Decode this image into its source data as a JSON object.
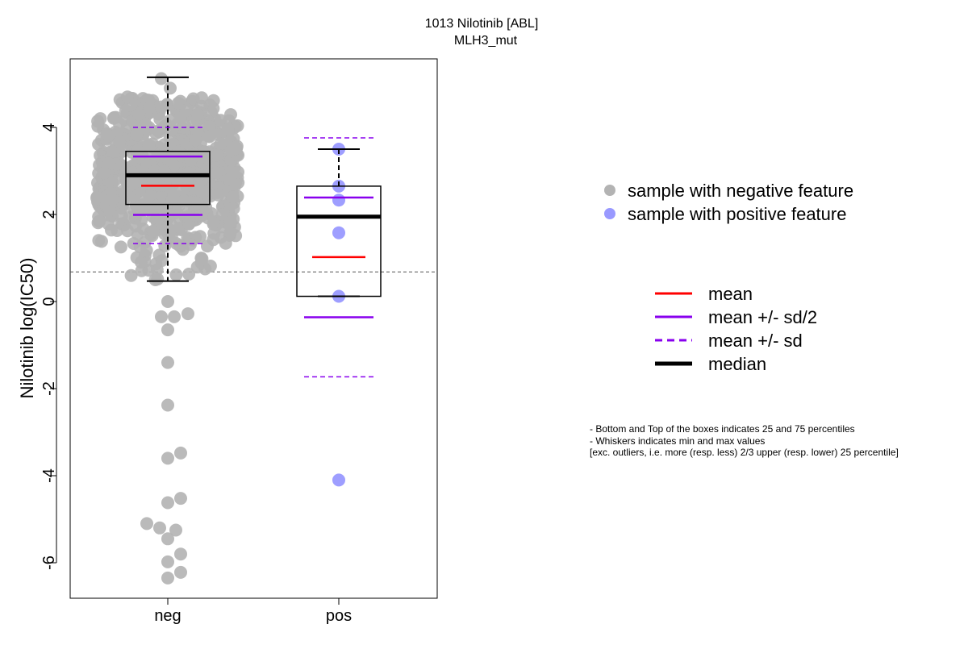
{
  "chart_data": {
    "type": "boxplot",
    "title": [
      "1013 Nilotinib [ABL]",
      "MLH3_mut"
    ],
    "ylabel": "Nilotinib log(IC50)",
    "xlabel": "",
    "categories": [
      "neg",
      "pos"
    ],
    "ylim": [
      -6.8,
      5.6
    ],
    "yticks": [
      -6,
      -4,
      -2,
      0,
      2,
      4
    ],
    "reference_line_y": 0.68,
    "groups": [
      {
        "name": "neg",
        "point_color": "#b3b3b3",
        "box": {
          "q1": 2.23,
          "median": 2.9,
          "q3": 3.45,
          "whisker_low": 0.47,
          "whisker_high": 5.15
        },
        "mean": 2.66,
        "mean_plus_half_sd": 3.33,
        "mean_minus_half_sd": 1.99,
        "mean_plus_sd": 4.0,
        "mean_minus_sd": 1.33,
        "low_points": [
          0.0,
          -0.35,
          -0.35,
          -0.28,
          -0.65,
          -1.4,
          -2.38,
          -3.48,
          -3.6,
          -4.52,
          -4.62,
          -5.1,
          -5.2,
          -5.25,
          -5.45,
          -5.8,
          -5.98,
          -6.22,
          -6.35
        ]
      },
      {
        "name": "pos",
        "point_color": "#9999ff",
        "box": {
          "q1": 0.12,
          "median": 1.95,
          "q3": 2.65,
          "whisker_low": 0.12,
          "whisker_high": 3.5
        },
        "mean": 1.02,
        "mean_plus_half_sd": 2.39,
        "mean_minus_half_sd": -0.36,
        "mean_plus_sd": 3.76,
        "mean_minus_sd": -1.73,
        "points": [
          3.5,
          2.65,
          2.33,
          1.58,
          0.12,
          -4.1
        ]
      }
    ],
    "legend_points": [
      {
        "label": "sample with negative feature",
        "color": "#b3b3b3"
      },
      {
        "label": "sample with positive feature",
        "color": "#9999ff"
      }
    ],
    "legend_lines": [
      {
        "label": "mean",
        "color": "#ff0000",
        "style": "solid"
      },
      {
        "label": "mean +/- sd/2",
        "color": "#8800ee",
        "style": "solid"
      },
      {
        "label": "mean +/- sd",
        "color": "#8800ee",
        "style": "dashed"
      },
      {
        "label": "median",
        "color": "#000000",
        "style": "thick"
      }
    ],
    "notes": [
      "- Bottom and Top of the boxes indicates 25 and 75 percentiles",
      "- Whiskers indicates min and max values",
      "[exc. outliers, i.e. more (resp. less) 2/3 upper (resp. lower) 25 percentile]"
    ]
  }
}
